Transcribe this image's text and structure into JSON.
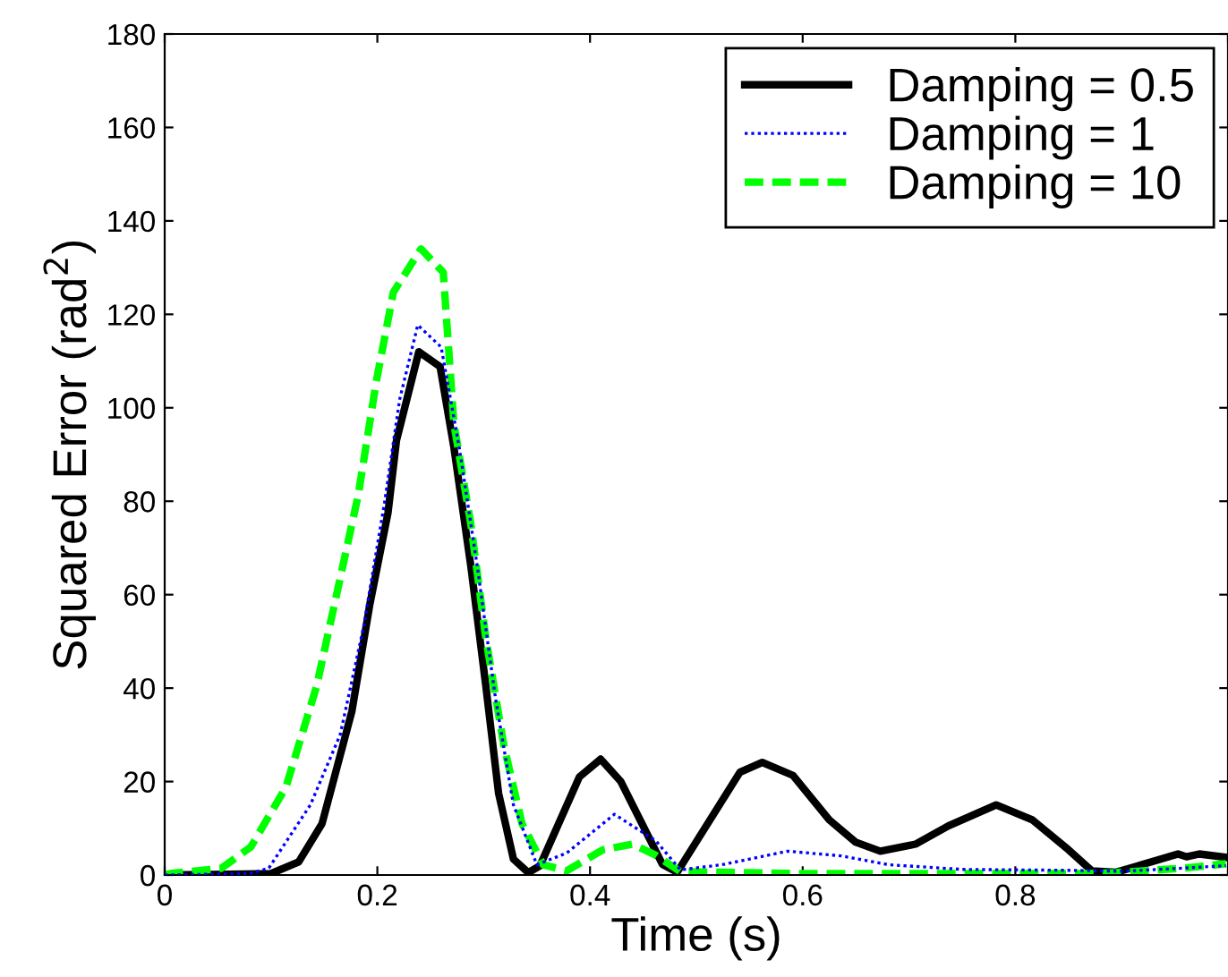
{
  "chart_data": {
    "type": "line",
    "xlabel": "Time (s)",
    "ylabel": "Squared Error (rad$^{2}$)",
    "xlim": [
      0,
      1
    ],
    "xticks": [
      0,
      0.2,
      0.4,
      0.6,
      0.8,
      {
        "value": 1,
        "label": null
      }
    ],
    "ylim": [
      0,
      180
    ],
    "yticks": [
      0,
      20,
      40,
      60,
      80,
      100,
      120,
      140,
      160,
      180
    ],
    "grid": false,
    "legend": "top right",
    "marker": "none",
    "series": [
      {
        "name": "Damping = 0.5",
        "color": "#000000",
        "line_style": "solid",
        "x": [
          0,
          0.1,
          0.126,
          0.148,
          0.176,
          0.193,
          0.21,
          0.218,
          0.239,
          0.259,
          0.272,
          0.288,
          0.302,
          0.314,
          0.328,
          0.342,
          0.353,
          0.39,
          0.41,
          0.429,
          0.468,
          0.482,
          0.541,
          0.562,
          0.591,
          0.625,
          0.65,
          0.673,
          0.706,
          0.737,
          0.782,
          0.816,
          0.85,
          0.872,
          0.895,
          0.953,
          0.961,
          0.973,
          0.998
        ],
        "values": [
          0,
          0.3,
          2.8,
          11,
          35,
          58,
          77.5,
          93,
          112,
          108.8,
          91.5,
          66,
          40.5,
          17.5,
          3.4,
          0.5,
          2,
          21,
          24.8,
          20,
          2.3,
          0.6,
          22,
          24.1,
          21.3,
          11.8,
          7,
          5.1,
          6.6,
          10.5,
          15,
          11.8,
          5.4,
          0.9,
          0.6,
          4.5,
          3.9,
          4.5,
          3.8
        ]
      },
      {
        "name": "Damping = 1",
        "color": "#0000ff",
        "line_style": "dotted",
        "x": [
          0,
          0.08,
          0.098,
          0.137,
          0.165,
          0.187,
          0.207,
          0.221,
          0.238,
          0.26,
          0.277,
          0.294,
          0.311,
          0.328,
          0.35,
          0.378,
          0.423,
          0.462,
          0.485,
          0.524,
          0.586,
          0.636,
          0.681,
          0.75,
          0.85,
          0.9,
          0.96,
          0.998
        ],
        "values": [
          0,
          0.3,
          1.5,
          15,
          30,
          53,
          80,
          101.8,
          117.7,
          113,
          91.5,
          66,
          38,
          15,
          2.2,
          4.7,
          13,
          7.3,
          1.1,
          2.2,
          5.1,
          4.1,
          2.2,
          1.2,
          1,
          0.8,
          1.5,
          2
        ]
      },
      {
        "name": "Damping = 10",
        "color": "#00ff00",
        "line_style": "dashed",
        "x": [
          0,
          0.008,
          0.053,
          0.081,
          0.114,
          0.143,
          0.165,
          0.182,
          0.199,
          0.215,
          0.241,
          0.262,
          0.272,
          0.288,
          0.302,
          0.319,
          0.336,
          0.356,
          0.378,
          0.412,
          0.44,
          0.462,
          0.485,
          0.6,
          0.75,
          0.87,
          0.895,
          0.96,
          0.998
        ],
        "values": [
          0,
          0.4,
          1.4,
          6,
          18.8,
          40.5,
          63.5,
          81.3,
          105.6,
          124.7,
          134,
          129,
          96.6,
          75,
          50.7,
          27.7,
          11,
          2.2,
          0.9,
          5.4,
          6.6,
          4.2,
          0.7,
          0.3,
          0.3,
          0.3,
          0.5,
          1.5,
          2.4
        ]
      }
    ]
  }
}
